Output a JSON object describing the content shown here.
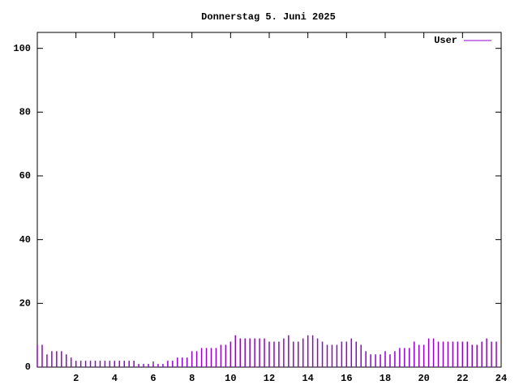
{
  "chart_data": {
    "type": "impulse",
    "title": "Donnerstag 5. Juni 2025",
    "x": [
      0,
      0.25,
      0.5,
      0.75,
      1,
      1.25,
      1.5,
      1.75,
      2,
      2.25,
      2.5,
      2.75,
      3,
      3.25,
      3.5,
      3.75,
      4,
      4.25,
      4.5,
      4.75,
      5,
      5.25,
      5.5,
      5.75,
      6,
      6.25,
      6.5,
      6.75,
      7,
      7.25,
      7.5,
      7.75,
      8,
      8.25,
      8.5,
      8.75,
      9,
      9.25,
      9.5,
      9.75,
      10,
      10.25,
      10.5,
      10.75,
      11,
      11.25,
      11.5,
      11.75,
      12,
      12.25,
      12.5,
      12.75,
      13,
      13.25,
      13.5,
      13.75,
      14,
      14.25,
      14.5,
      14.75,
      15,
      15.25,
      15.5,
      15.75,
      16,
      16.25,
      16.5,
      16.75,
      17,
      17.25,
      17.5,
      17.75,
      18,
      18.25,
      18.5,
      18.75,
      19,
      19.25,
      19.5,
      19.75,
      20,
      20.25,
      20.5,
      20.75,
      21,
      21.25,
      21.5,
      21.75,
      22,
      22.25,
      22.5,
      22.75,
      23,
      23.25,
      23.5,
      23.75
    ],
    "series": [
      {
        "name": "User",
        "color": "#9400d3",
        "values": [
          7,
          7,
          4,
          5,
          5,
          5,
          4,
          3,
          2,
          2,
          2,
          2,
          2,
          2,
          2,
          2,
          2,
          2,
          2,
          2,
          2,
          1,
          1,
          1,
          1,
          1,
          1,
          2,
          2,
          3,
          3,
          3,
          5,
          5,
          6,
          6,
          6,
          6,
          7,
          7,
          8,
          10,
          9,
          9,
          9,
          9,
          9,
          9,
          8,
          8,
          8,
          9,
          10,
          8,
          8,
          9,
          10,
          10,
          9,
          8,
          7,
          7,
          7,
          8,
          8,
          9,
          8,
          7,
          5,
          4,
          4,
          4,
          5,
          4,
          5,
          6,
          6,
          6,
          8,
          7,
          7,
          9,
          9,
          8,
          8,
          8,
          8,
          8,
          8,
          8,
          7,
          7,
          8,
          9,
          8,
          8
        ]
      }
    ],
    "xlim": [
      0,
      24
    ],
    "ylim": [
      0,
      105
    ],
    "xticks": [
      2,
      4,
      6,
      8,
      10,
      12,
      14,
      16,
      18,
      20,
      22,
      24
    ],
    "yticks": [
      0,
      20,
      40,
      60,
      80,
      100
    ],
    "legend": "top-right"
  }
}
